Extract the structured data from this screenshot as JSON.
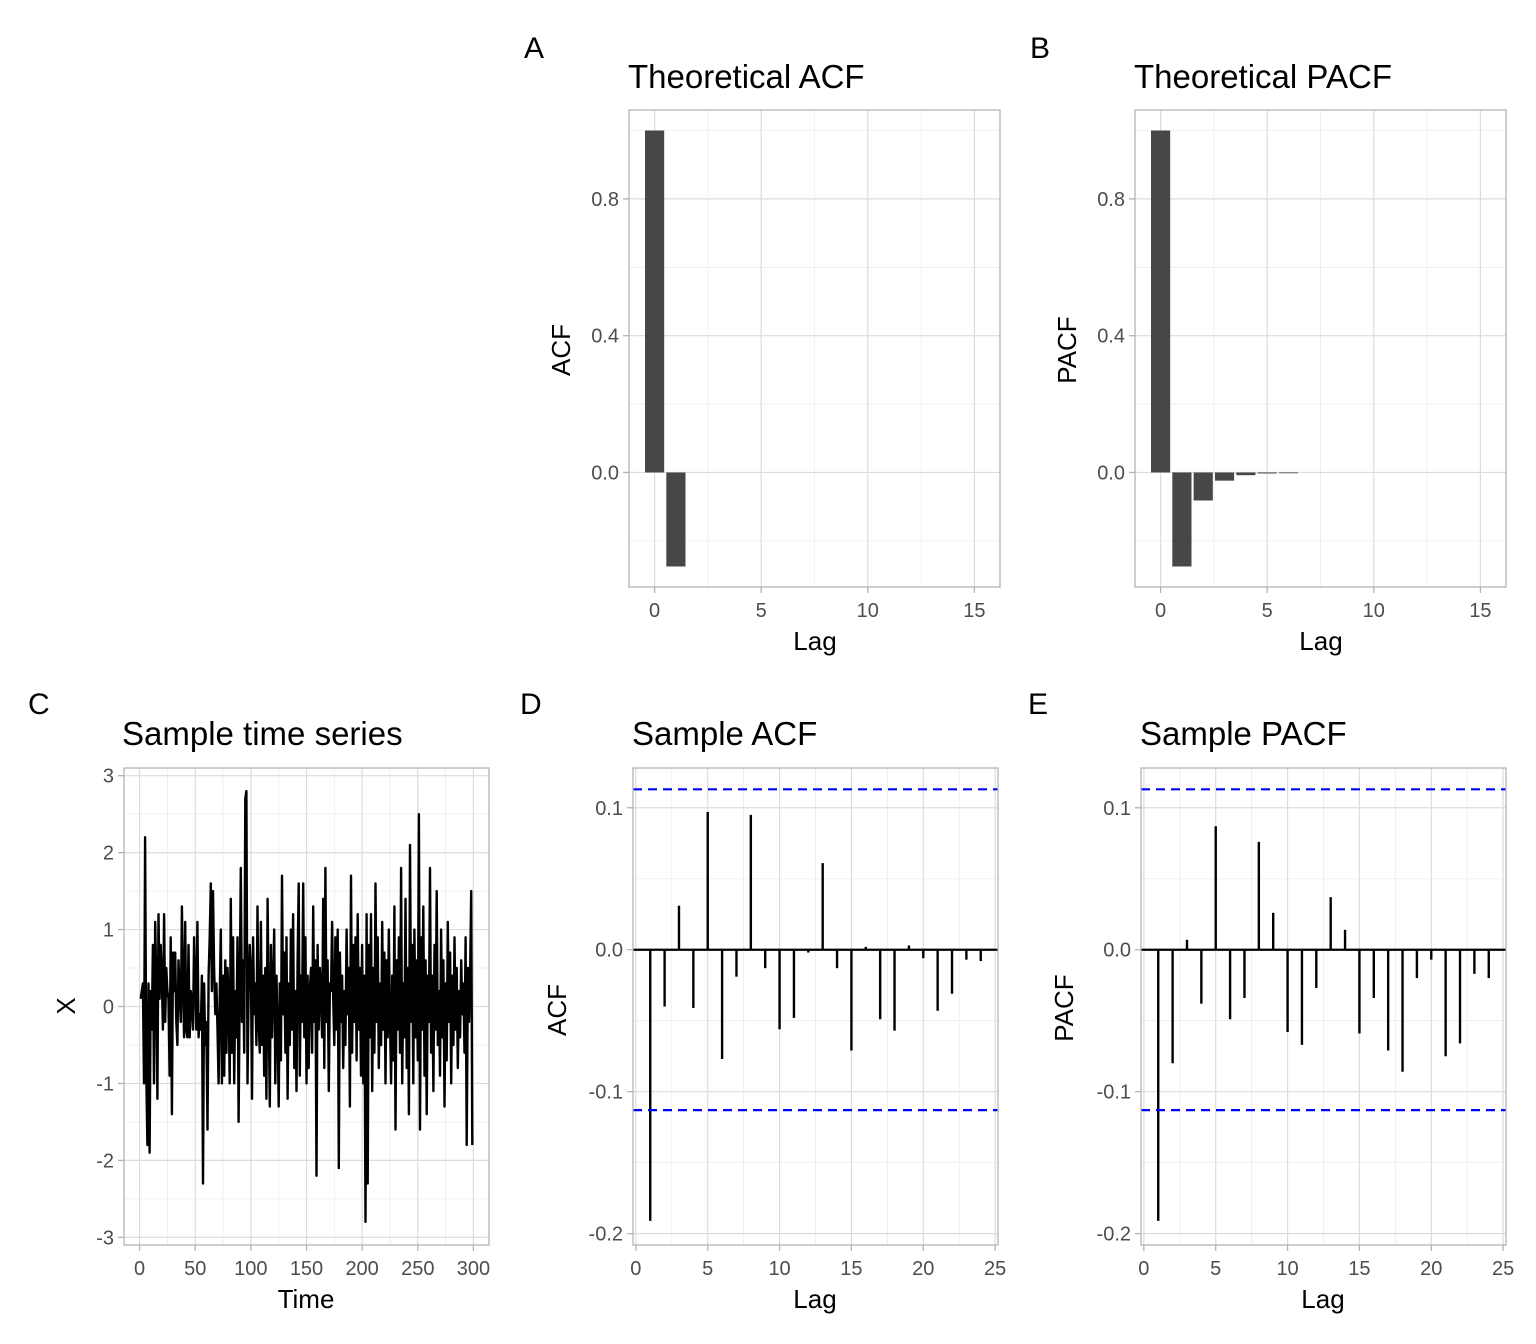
{
  "figure": {
    "panels": [
      {
        "tag": "A",
        "title": "Theoretical ACF",
        "xlabel": "Lag",
        "ylabel": "ACF"
      },
      {
        "tag": "B",
        "title": "Theoretical PACF",
        "xlabel": "Lag",
        "ylabel": "PACF"
      },
      {
        "tag": "C",
        "title": "Sample time series",
        "xlabel": "Time",
        "ylabel": "X"
      },
      {
        "tag": "D",
        "title": "Sample ACF",
        "xlabel": "Lag",
        "ylabel": "ACF"
      },
      {
        "tag": "E",
        "title": "Sample PACF",
        "xlabel": "Lag",
        "ylabel": "PACF"
      }
    ]
  },
  "chart_data": [
    {
      "id": "A",
      "type": "bar",
      "title": "Theoretical ACF",
      "xlabel": "Lag",
      "ylabel": "ACF",
      "x": [
        0,
        1
      ],
      "values": [
        1.0,
        -0.275
      ],
      "xlim": [
        -1.2,
        16.2
      ],
      "ylim": [
        -0.335,
        1.06
      ],
      "xticks": [
        0,
        5,
        10,
        15
      ],
      "yticks": [
        0.0,
        0.4,
        0.8
      ],
      "ytick_labels": [
        "0.0",
        "0.4",
        "0.8"
      ],
      "bar_color": "#474747",
      "grid": true
    },
    {
      "id": "B",
      "type": "bar",
      "title": "Theoretical PACF",
      "xlabel": "Lag",
      "ylabel": "PACF",
      "x": [
        0,
        1,
        2,
        3,
        4,
        5,
        6
      ],
      "values": [
        1.0,
        -0.275,
        -0.082,
        -0.024,
        -0.008,
        -0.003,
        -0.001
      ],
      "xlim": [
        -1.2,
        16.2
      ],
      "ylim": [
        -0.335,
        1.06
      ],
      "xticks": [
        0,
        5,
        10,
        15
      ],
      "yticks": [
        0.0,
        0.4,
        0.8
      ],
      "ytick_labels": [
        "0.0",
        "0.4",
        "0.8"
      ],
      "bar_color": "#474747",
      "grid": true
    },
    {
      "id": "C",
      "type": "line",
      "title": "Sample time series",
      "xlabel": "Time",
      "ylabel": "X",
      "xlim": [
        -14,
        314
      ],
      "ylim": [
        -3.1,
        3.1
      ],
      "xticks": [
        0,
        50,
        100,
        150,
        200,
        250,
        300
      ],
      "yticks": [
        -3,
        -2,
        -1,
        0,
        1,
        2,
        3
      ],
      "ytick_labels": [
        "-3",
        "-2",
        "-1",
        "0",
        "1",
        "2",
        "3"
      ],
      "line_color": "#000000",
      "grid": true,
      "y": [
        0.1,
        0.2,
        0.3,
        -1.0,
        2.2,
        -0.9,
        -1.8,
        0.3,
        -1.9,
        0.2,
        -0.3,
        0.8,
        -1.0,
        1.1,
        0.3,
        -1.2,
        1.2,
        0.1,
        0.8,
        0.4,
        -0.3,
        1.2,
        -0.2,
        0.5,
        0.2,
        0.1,
        -0.9,
        0.9,
        -1.4,
        0.7,
        0.2,
        0.7,
        -0.2,
        -0.5,
        0.6,
        0.2,
        -0.2,
        1.3,
        0.3,
        -0.4,
        1.1,
        -0.3,
        -0.4,
        0.8,
        -0.4,
        0.2,
        0.0,
        -0.3,
        0.9,
        0.3,
        -0.3,
        1.1,
        -0.4,
        -0.1,
        -0.3,
        0.4,
        -2.3,
        0.3,
        -0.5,
        -0.2,
        -1.6,
        0.4,
        0.9,
        1.6,
        0.2,
        1.5,
        0.5,
        -0.1,
        0.3,
        -0.3,
        -1.0,
        0.1,
        1.0,
        -1.0,
        0.4,
        -0.9,
        0.6,
        -0.6,
        0.5,
        0.1,
        -1.0,
        1.4,
        -0.6,
        0.9,
        -1.0,
        0.2,
        -0.4,
        0.9,
        -1.5,
        0.2,
        1.8,
        -0.2,
        0.6,
        -0.6,
        2.7,
        2.8,
        -1.0,
        0.2,
        0.8,
        0.5,
        -1.2,
        0.9,
        -0.1,
        0.3,
        -0.5,
        1.3,
        -0.2,
        -0.6,
        1.1,
        -0.5,
        0.4,
        -0.9,
        0.5,
        -1.2,
        1.4,
        -0.1,
        -1.3,
        0.8,
        -0.4,
        0.3,
        1.0,
        -1.0,
        0.4,
        -0.3,
        -1.3,
        0.3,
        -0.7,
        1.7,
        -0.1,
        0.7,
        -0.6,
        0.9,
        -1.2,
        0.3,
        -0.5,
        1.0,
        -0.3,
        1.2,
        -0.8,
        0.2,
        -1.1,
        0.6,
        1.6,
        -0.9,
        0.4,
        -0.2,
        1.6,
        -0.4,
        0.9,
        -1.0,
        0.4,
        -0.8,
        0.2,
        0.5,
        -0.6,
        1.3,
        -0.2,
        0.6,
        -2.2,
        0.8,
        -0.3,
        0.5,
        0.1,
        -0.4,
        1.4,
        -0.8,
        1.8,
        -0.2,
        0.6,
        -1.1,
        0.3,
        0.2,
        1.1,
        0.1,
        -0.5,
        0.9,
        -0.3,
        1.0,
        -2.1,
        0.7,
        -0.2,
        0.4,
        -0.8,
        0.2,
        -0.5,
        1.0,
        -0.1,
        0.5,
        -1.3,
        1.7,
        -0.6,
        0.8,
        -0.2,
        0.9,
        -0.7,
        1.2,
        -0.3,
        0.5,
        -0.9,
        0.8,
        -1.0,
        0.4,
        -2.8,
        1.2,
        -2.3,
        0.8,
        -0.4,
        1.2,
        -1.1,
        0.5,
        -0.6,
        1.6,
        -0.2,
        0.9,
        -0.8,
        0.3,
        -0.5,
        1.1,
        -0.3,
        0.7,
        -1.0,
        0.6,
        -0.4,
        1.0,
        -0.2,
        -1.0,
        0.4,
        -0.7,
        1.3,
        -1.6,
        0.6,
        -0.3,
        0.9,
        -0.6,
        1.8,
        -1.0,
        0.3,
        -0.4,
        1.4,
        -0.8,
        0.5,
        -1.4,
        2.1,
        -0.2,
        0.8,
        -1.0,
        1.0,
        -0.4,
        0.6,
        -0.7,
        2.5,
        -1.6,
        0.9,
        -0.3,
        1.3,
        -0.9,
        0.6,
        -1.4,
        0.4,
        -0.2,
        1.8,
        -0.6,
        0.4,
        -1.1,
        0.8,
        -0.3,
        1.5,
        -0.5,
        0.2,
        -0.9,
        1.0,
        -0.4,
        0.6,
        -1.3,
        0.3,
        -0.7,
        1.1,
        -0.2,
        0.7,
        -1.0,
        0.4,
        -0.5,
        0.9,
        -0.3,
        0.5,
        -0.8,
        0.2,
        -0.4,
        0.6,
        -0.1,
        0.3,
        -0.6,
        0.9,
        -1.8,
        0.5,
        -0.2,
        0.4,
        1.5,
        -1.8
      ]
    },
    {
      "id": "D",
      "type": "bar",
      "title": "Sample ACF",
      "xlabel": "Lag",
      "ylabel": "ACF",
      "x": [
        1,
        2,
        3,
        4,
        5,
        6,
        7,
        8,
        9,
        10,
        11,
        12,
        13,
        14,
        15,
        16,
        17,
        18,
        19,
        20,
        21,
        22,
        23,
        24
      ],
      "values": [
        -0.191,
        -0.04,
        0.031,
        -0.041,
        0.097,
        -0.077,
        -0.019,
        0.095,
        -0.013,
        -0.056,
        -0.048,
        -0.002,
        0.061,
        -0.013,
        -0.071,
        0.002,
        -0.049,
        -0.057,
        0.003,
        -0.006,
        -0.043,
        -0.031,
        -0.007,
        -0.008
      ],
      "xlim": [
        -0.2,
        25.2
      ],
      "ylim": [
        -0.208,
        0.128
      ],
      "xticks": [
        0,
        5,
        10,
        15,
        20,
        25
      ],
      "yticks": [
        -0.2,
        -0.1,
        0.0,
        0.1
      ],
      "ytick_labels": [
        "-0.2",
        "-0.1",
        "0.0",
        "0.1"
      ],
      "conf_limit": 0.113,
      "conf_color": "#0000ff",
      "grid": true
    },
    {
      "id": "E",
      "type": "bar",
      "title": "Sample PACF",
      "xlabel": "Lag",
      "ylabel": "PACF",
      "x": [
        1,
        2,
        3,
        4,
        5,
        6,
        7,
        8,
        9,
        10,
        11,
        12,
        13,
        14,
        15,
        16,
        17,
        18,
        19,
        20,
        21,
        22,
        23,
        24
      ],
      "values": [
        -0.191,
        -0.08,
        0.007,
        -0.038,
        0.087,
        -0.049,
        -0.034,
        0.076,
        0.026,
        -0.058,
        -0.067,
        -0.027,
        0.037,
        0.014,
        -0.059,
        -0.034,
        -0.071,
        -0.086,
        -0.02,
        -0.007,
        -0.075,
        -0.066,
        -0.017,
        -0.02
      ],
      "xlim": [
        -0.2,
        25.2
      ],
      "ylim": [
        -0.208,
        0.128
      ],
      "xticks": [
        0,
        5,
        10,
        15,
        20,
        25
      ],
      "yticks": [
        -0.2,
        -0.1,
        0.0,
        0.1
      ],
      "ytick_labels": [
        "-0.2",
        "-0.1",
        "0.0",
        "0.1"
      ],
      "conf_limit": 0.113,
      "conf_color": "#0000ff",
      "grid": true
    }
  ]
}
